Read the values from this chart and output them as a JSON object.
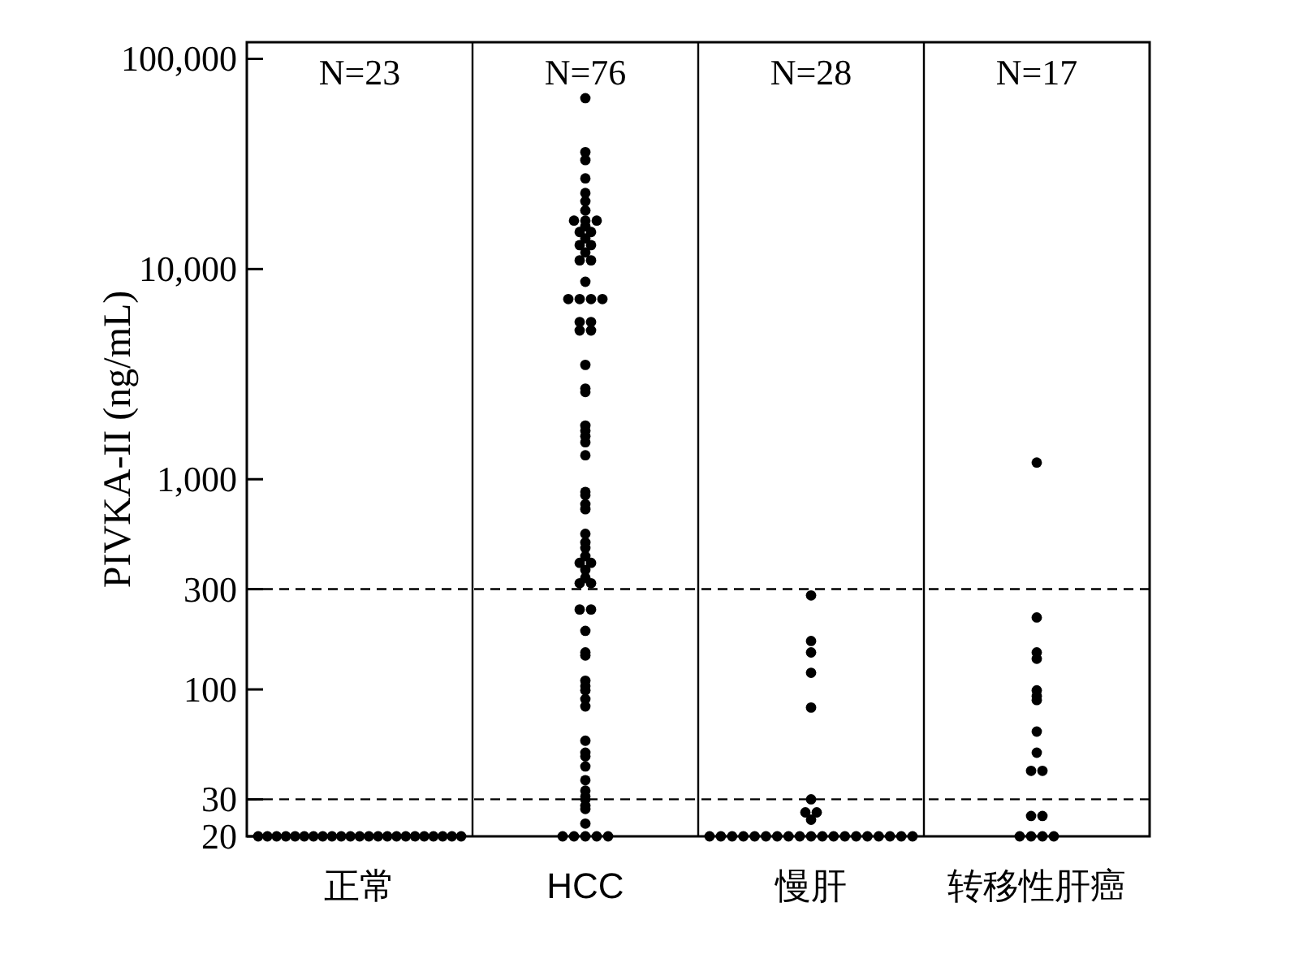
{
  "chart_data": {
    "type": "scatter",
    "ylabel": "PIVKA-II (ng/mL)",
    "categories": [
      "正常",
      "HCC",
      "慢肝",
      "转移性肝癌"
    ],
    "annotations": [
      "N=23",
      "N=76",
      "N=28",
      "N=17"
    ],
    "log": "y",
    "ylim": [
      20,
      120000
    ],
    "yticks": [
      20,
      30,
      100,
      300,
      {
        "value": 1000,
        "label": "1,000"
      },
      {
        "value": 10000,
        "label": "10,000"
      },
      {
        "value": 100000,
        "label": "100,000"
      }
    ],
    "ref_lines": [
      {
        "axis": "y",
        "value": 300,
        "color": "#000000",
        "line_style": "dashed"
      },
      {
        "axis": "y",
        "value": 30,
        "color": "#000000",
        "line_style": "dashed"
      }
    ],
    "marker": "circle",
    "series": [
      {
        "color": "#000000",
        "x": [
          "正常",
          "正常",
          "正常",
          "正常",
          "正常",
          "正常",
          "正常",
          "正常",
          "正常",
          "正常",
          "正常",
          "正常",
          "正常",
          "正常",
          "正常",
          "正常",
          "正常",
          "正常",
          "正常",
          "正常",
          "正常",
          "正常",
          "正常",
          "HCC",
          "HCC",
          "HCC",
          "HCC",
          "HCC",
          "HCC",
          "HCC",
          "HCC",
          "HCC",
          "HCC",
          "HCC",
          "HCC",
          "HCC",
          "HCC",
          "HCC",
          "HCC",
          "HCC",
          "HCC",
          "HCC",
          "HCC",
          "HCC",
          "HCC",
          "HCC",
          "HCC",
          "HCC",
          "HCC",
          "HCC",
          "HCC",
          "HCC",
          "HCC",
          "HCC",
          "HCC",
          "HCC",
          "HCC",
          "HCC",
          "HCC",
          "HCC",
          "HCC",
          "HCC",
          "HCC",
          "HCC",
          "HCC",
          "HCC",
          "HCC",
          "HCC",
          "HCC",
          "HCC",
          "HCC",
          "HCC",
          "HCC",
          "HCC",
          "HCC",
          "HCC",
          "HCC",
          "HCC",
          "HCC",
          "HCC",
          "HCC",
          "HCC",
          "HCC",
          "HCC",
          "HCC",
          "HCC",
          "HCC",
          "HCC",
          "HCC",
          "HCC",
          "HCC",
          "HCC",
          "HCC",
          "HCC",
          "HCC",
          "HCC",
          "HCC",
          "HCC",
          "HCC",
          "慢肝",
          "慢肝",
          "慢肝",
          "慢肝",
          "慢肝",
          "慢肝",
          "慢肝",
          "慢肝",
          "慢肝",
          "慢肝",
          "慢肝",
          "慢肝",
          "慢肝",
          "慢肝",
          "慢肝",
          "慢肝",
          "慢肝",
          "慢肝",
          "慢肝",
          "慢肝",
          "慢肝",
          "慢肝",
          "慢肝",
          "慢肝",
          "慢肝",
          "慢肝",
          "慢肝",
          "慢肝",
          "转移性肝癌",
          "转移性肝癌",
          "转移性肝癌",
          "转移性肝癌",
          "转移性肝癌",
          "转移性肝癌",
          "转移性肝癌",
          "转移性肝癌",
          "转移性肝癌",
          "转移性肝癌",
          "转移性肝癌",
          "转移性肝癌",
          "转移性肝癌",
          "转移性肝癌",
          "转移性肝癌",
          "转移性肝癌",
          "转移性肝癌"
        ],
        "values": [
          20,
          20,
          20,
          20,
          20,
          20,
          20,
          20,
          20,
          20,
          20,
          20,
          20,
          20,
          20,
          20,
          20,
          20,
          20,
          20,
          20,
          20,
          20,
          65000,
          36000,
          33000,
          27000,
          23000,
          21000,
          19000,
          17000,
          16000,
          14000,
          13000,
          12000,
          11000,
          17000,
          17000,
          15000,
          15000,
          13000,
          11000,
          8700,
          7200,
          7200,
          7200,
          7200,
          5600,
          5600,
          5100,
          5100,
          3500,
          2700,
          2600,
          1800,
          1700,
          1600,
          1500,
          1300,
          870,
          840,
          760,
          720,
          550,
          500,
          470,
          430,
          400,
          370,
          340,
          320,
          400,
          320,
          240,
          240,
          190,
          150,
          145,
          110,
          104,
          99,
          90,
          83,
          57,
          50,
          48,
          43,
          37,
          33,
          31,
          30,
          28,
          27,
          23,
          20,
          20,
          20,
          20,
          20,
          280,
          170,
          150,
          120,
          82,
          30,
          26,
          26,
          24,
          20,
          20,
          20,
          20,
          20,
          20,
          20,
          20,
          20,
          20,
          20,
          20,
          20,
          20,
          20,
          20,
          20,
          20,
          20,
          1200,
          220,
          150,
          140,
          99,
          93,
          89,
          63,
          50,
          41,
          41,
          25,
          25,
          20,
          20,
          20,
          20
        ]
      }
    ]
  }
}
